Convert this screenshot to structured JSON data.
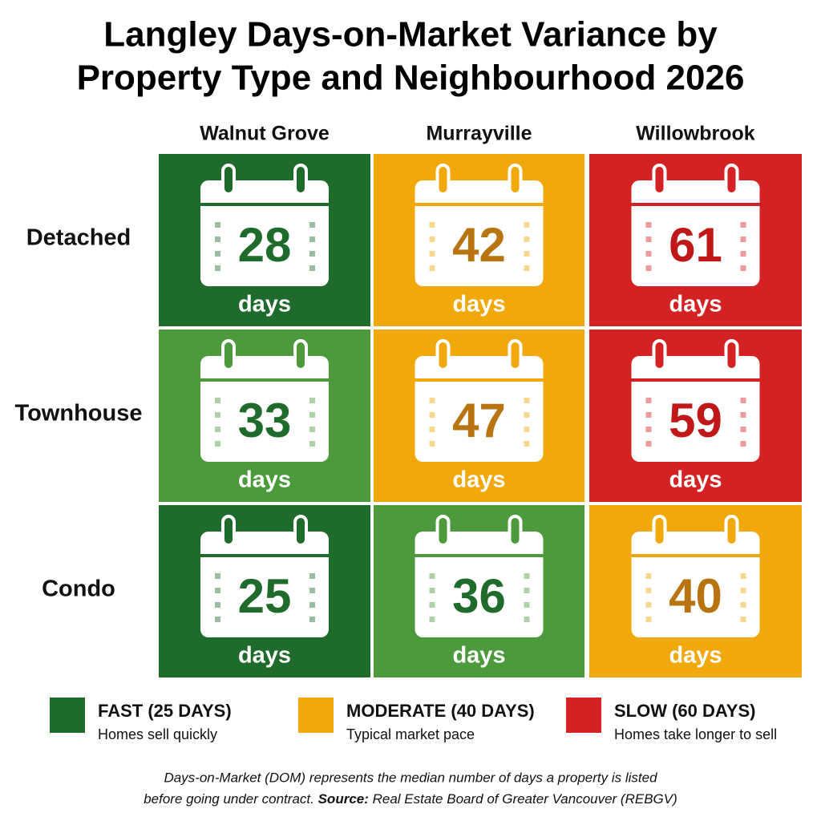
{
  "chart_data": {
    "type": "heatmap",
    "title": [
      "Langley Days-on-Market Variance by",
      "Property Type and Neighbourhood 2026"
    ],
    "columns": [
      "Walnut Grove",
      "Murrayville",
      "Willowbrook"
    ],
    "rows": [
      "Detached",
      "Townhouse",
      "Condo"
    ],
    "values": [
      [
        28,
        42,
        61
      ],
      [
        33,
        47,
        59
      ],
      [
        25,
        36,
        40
      ]
    ],
    "unit_label": "days",
    "cell_colors": [
      [
        "#1f6b2b",
        "#f0a80a",
        "#d42224"
      ],
      [
        "#4c9a3c",
        "#f0a80a",
        "#d42224"
      ],
      [
        "#1f6b2b",
        "#4c9a3c",
        "#f0a80a"
      ]
    ],
    "number_colors": [
      [
        "#1f6b2b",
        "#b87410",
        "#c01818"
      ],
      [
        "#1f6b2b",
        "#b87410",
        "#c01818"
      ],
      [
        "#1f6b2b",
        "#1f6b2b",
        "#b87410"
      ]
    ],
    "legend": [
      {
        "name": "FAST (25 DAYS)",
        "description": "Homes sell quickly",
        "color": "#1f6b2b"
      },
      {
        "name": "MODERATE (40 DAYS)",
        "description": "Typical market pace",
        "color": "#f0a80a"
      },
      {
        "name": "SLOW (60 DAYS)",
        "description": "Homes take longer to sell",
        "color": "#d42224"
      }
    ],
    "note": [
      "Days-on-Market (DOM) represents the median number of days a property is listed",
      "before going under contract."
    ],
    "source_label": "Source:",
    "source": "Real Estate Board of Greater Vancouver (REBGV)"
  }
}
